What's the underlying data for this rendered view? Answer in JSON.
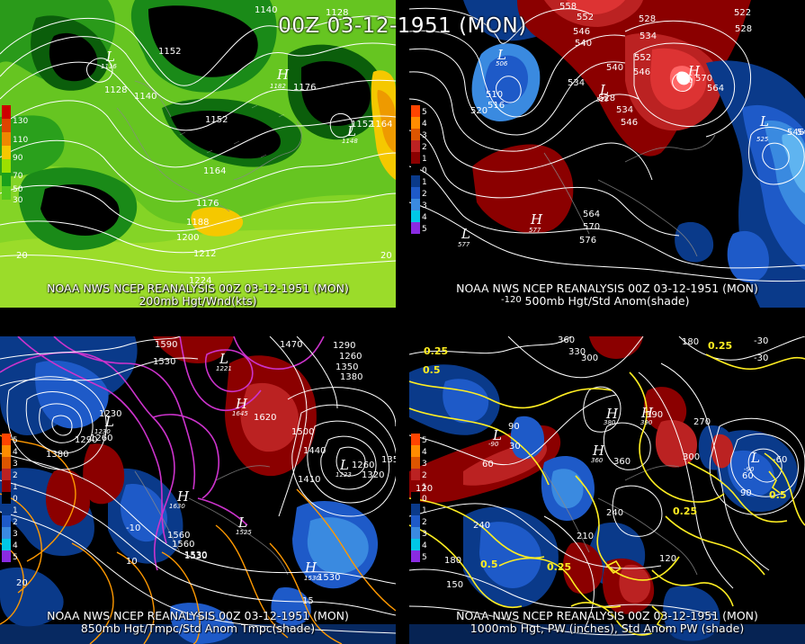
{
  "title": "00Z 03-12-1951 (MON)",
  "panels": [
    {
      "caption1": "NOAA NWS NCEP REANALYSIS 00Z 03-12-1951 (MON)",
      "caption2": "200mb Hgt/Wnd(kts)",
      "legend": [
        "130",
        "110",
        "90",
        "70",
        "50",
        "30"
      ],
      "legend_colors": [
        "#cc0000",
        "#dd4400",
        "#ee8800",
        "#f5c800",
        "#9be000",
        "#1aa01a",
        "#55c81e"
      ],
      "contour_labels": [
        "1140",
        "1128",
        "1152",
        "1128",
        "1140",
        "1152",
        "1164",
        "1176",
        "1188",
        "1200",
        "1212",
        "1224",
        "1176",
        "1152",
        "1164",
        "20",
        "20"
      ],
      "highs": [
        {
          "value": "1182"
        }
      ],
      "lows": [
        {
          "value": "1116"
        },
        {
          "value": "1148"
        }
      ]
    },
    {
      "caption1": "NOAA NWS NCEP REANALYSIS 00Z 03-12-1951 (MON)",
      "caption2": "500mb Hgt/Std Anom(shade)",
      "legend": [
        "5",
        "4",
        "3",
        "2",
        "1",
        "0",
        "1",
        "2",
        "3",
        "4",
        "5"
      ],
      "legend_colors": [
        "#ff4400",
        "#ff8c00",
        "#dd5500",
        "#bb2222",
        "#8b0000",
        "#000000",
        "#0a3a8a",
        "#1e5ac8",
        "#3a8ae0",
        "#00c8e6",
        "#8a2be2"
      ],
      "contour_labels": [
        "558",
        "552",
        "546",
        "540",
        "528",
        "534",
        "522",
        "528",
        "552",
        "546",
        "540",
        "534",
        "510",
        "516",
        "520",
        "534",
        "528",
        "570",
        "564",
        "546",
        "540",
        "546",
        "564",
        "570",
        "576",
        "-120"
      ],
      "highs": [
        {
          "value": "580"
        },
        {
          "value": "577"
        }
      ],
      "lows": [
        {
          "value": "506"
        },
        {
          "value": "528"
        },
        {
          "value": "525"
        },
        {
          "value": "577"
        }
      ]
    },
    {
      "caption1": "NOAA NWS NCEP REANALYSIS 00Z 03-12-1951 (MON)",
      "caption2": "850mb Hgt/Tmpc/Std Anom Tmpc(shade)",
      "legend": [
        "5",
        "4",
        "3",
        "2",
        "1",
        "0",
        "1",
        "2",
        "3",
        "4",
        "5"
      ],
      "legend_colors": [
        "#ff4400",
        "#ff8c00",
        "#dd5500",
        "#bb2222",
        "#8b0000",
        "#000000",
        "#0a3a8a",
        "#1e5ac8",
        "#3a8ae0",
        "#00c8e6",
        "#8a2be2"
      ],
      "contour_labels": [
        "1590",
        "1530",
        "1470",
        "1290",
        "1260",
        "1350",
        "1380",
        "1230",
        "1290",
        "1380",
        "1260",
        "1560",
        "1620",
        "1500",
        "1440",
        "1410",
        "1350",
        "1320",
        "1260",
        "1560",
        "1530",
        "1530",
        "1530",
        "-10",
        "10",
        "15",
        "20"
      ],
      "highs": [
        {
          "value": "1645"
        },
        {
          "value": "1630"
        },
        {
          "value": "1530"
        }
      ],
      "lows": [
        {
          "value": "1230"
        },
        {
          "value": "1221"
        },
        {
          "value": "1223"
        },
        {
          "value": "1525"
        }
      ]
    },
    {
      "caption1": "NOAA NWS NCEP REANALYSIS 00Z 03-12-1951 (MON)",
      "caption2": "1000mb Hgt, PW (inches), Std Anom PW (shade)",
      "legend": [
        "5",
        "4",
        "3",
        "2",
        "1",
        "0",
        "1",
        "2",
        "3",
        "4",
        "5"
      ],
      "legend_colors": [
        "#ff4400",
        "#ff8c00",
        "#dd5500",
        "#bb2222",
        "#8b0000",
        "#000000",
        "#0a3a8a",
        "#1e5ac8",
        "#3a8ae0",
        "#00c8e6",
        "#8a2be2"
      ],
      "contour_labels": [
        "360",
        "330",
        "300",
        "180",
        "-30",
        "0.25",
        "0.25",
        "0.5",
        "-30",
        "90",
        "60",
        "30",
        "390",
        "360",
        "270",
        "300",
        "60",
        "-60",
        "90",
        "120",
        "240",
        "210",
        "240",
        "0.25",
        "0.5",
        "0.25",
        "120",
        "180",
        "150",
        "0.5"
      ],
      "highs": [
        {
          "value": "390"
        },
        {
          "value": "360"
        },
        {
          "value": "380"
        }
      ],
      "lows": [
        {
          "value": "-90"
        },
        {
          "value": "-90"
        }
      ]
    }
  ]
}
